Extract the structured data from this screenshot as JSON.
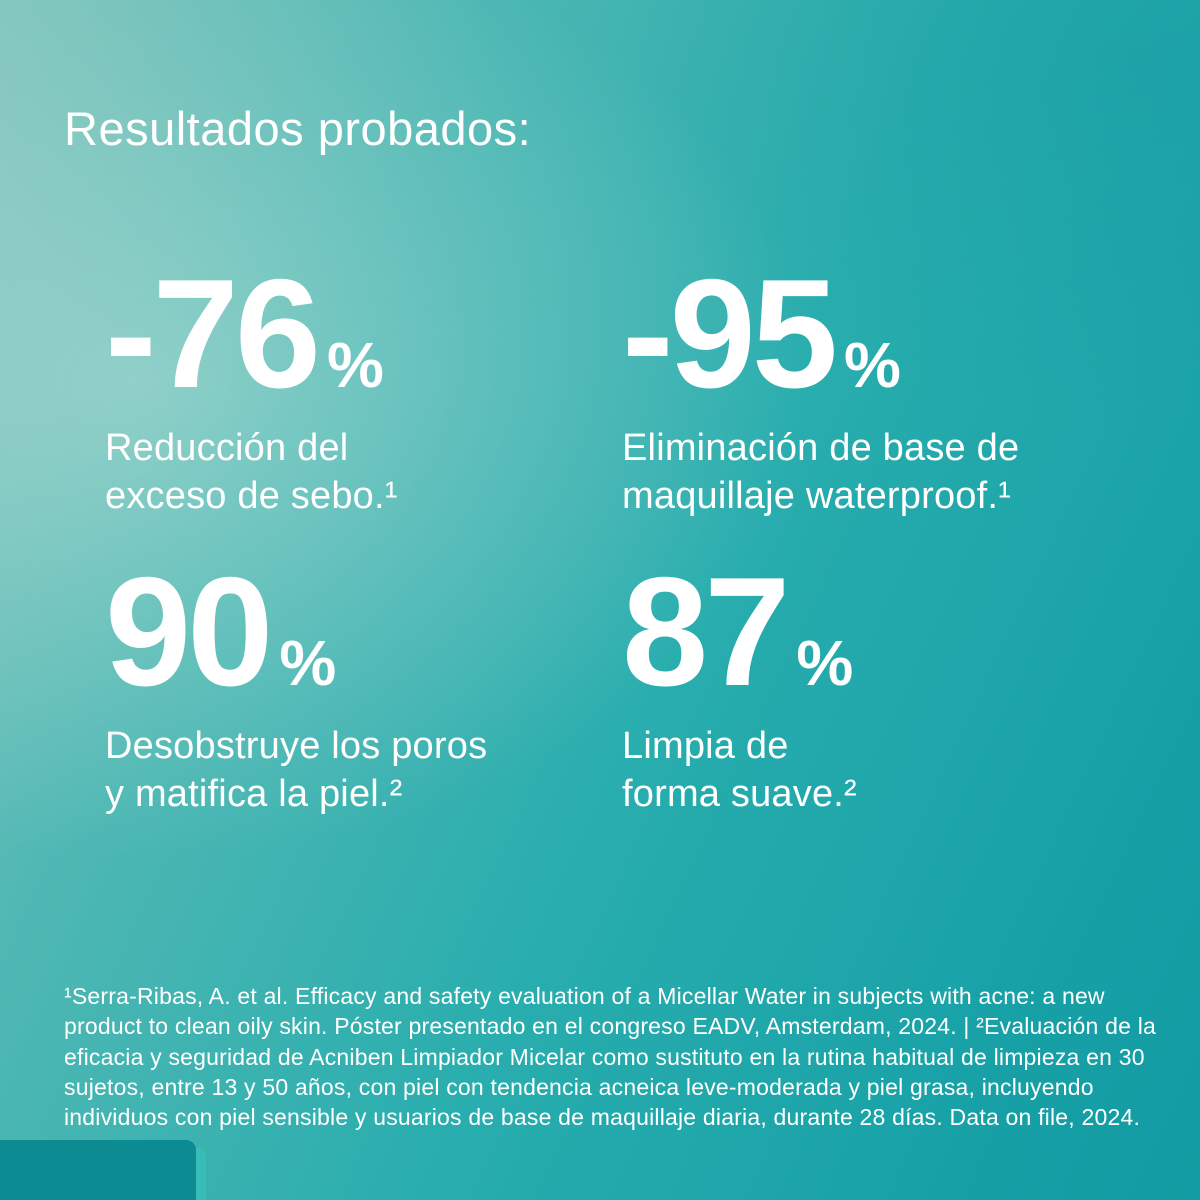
{
  "title": "Resultados probados:",
  "stats": [
    {
      "value": "-76",
      "unit": "%",
      "caption": "Reducción del\nexceso de sebo.¹"
    },
    {
      "value": "-95",
      "unit": "%",
      "caption": "Eliminación de base de\nmaquillaje waterproof.¹"
    },
    {
      "value": "90",
      "unit": "%",
      "caption": "Desobstruye los poros\ny matifica la piel.²"
    },
    {
      "value": "87",
      "unit": "%",
      "caption": "Limpia de\nforma suave.²"
    }
  ],
  "footnote": "¹Serra-Ribas, A. et al. Efficacy and safety evaluation of a Micellar Water in subjects with acne: a new product to clean oily skin. Póster presentado en el congreso EADV, Amsterdam, 2024. | ²Evaluación de la eficacia y seguridad de Acniben Limpiador Micelar como sustituto en la rutina habitual de limpieza en 30 sujetos, entre 13 y 50 años, con piel con tendencia acneica leve-moderada y piel grasa, incluyendo individuos con piel sensible y usuarios de base de maquillaje diaria, durante 28 días. Data on file, 2024.",
  "colors": {
    "background_light": "#7ec4bc",
    "background_deep": "#129ba2",
    "text": "#ffffff",
    "corner_shape": "#0c8b93"
  }
}
